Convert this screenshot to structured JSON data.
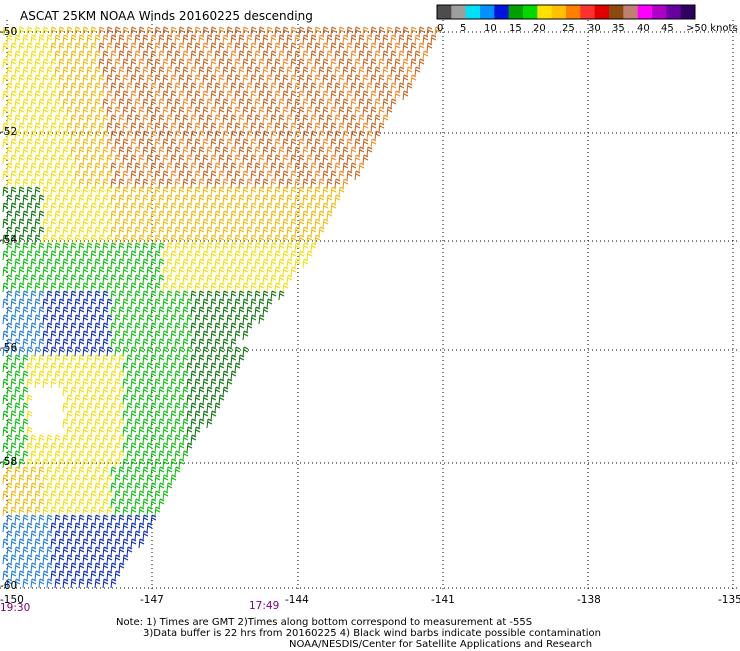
{
  "title": "ASCAT 25KM NOAA Winds 20160225 descending",
  "colorbar": {
    "colors": [
      "#4d4d4d",
      "#9e9e9e",
      "#00e0f8",
      "#0090ff",
      "#0014e0",
      "#00a000",
      "#00d800",
      "#ffe000",
      "#ffc000",
      "#ff8000",
      "#ff3030",
      "#e00000",
      "#8a4b10",
      "#c08070",
      "#ff00ff",
      "#b000c8",
      "#6a00a0",
      "#300060"
    ],
    "labels": [
      "0",
      "5",
      "10",
      "15",
      "20",
      "25",
      "30",
      "35",
      "40",
      "45",
      ">50 knots"
    ]
  },
  "axes": {
    "lat_labels": [
      "-50",
      "-52",
      "-54",
      "-56",
      "-58",
      "-60"
    ],
    "lon_labels": [
      "-150",
      "-147",
      "-144",
      "-141",
      "-138",
      "-135"
    ],
    "lat_values": [
      -50,
      -52,
      -54,
      -56,
      -58,
      -60
    ],
    "lon_values": [
      -150,
      -147,
      -144,
      -141,
      -138,
      -135
    ]
  },
  "times": [
    "19:30",
    "17:49"
  ],
  "notes": [
    "Note: 1) Times are GMT 2)Times along bottom correspond to measurement at -55S",
    "3)Data buffer is 22 hrs from 20160225 4) Black wind barbs indicate possible contamination",
    "NOAA/NESDIS/Center for Satellite Applications and Research"
  ],
  "wind_colors": {
    "brown": "#c85f16",
    "orange": "#f08a20",
    "gold": "#f0b800",
    "yellow": "#f2e000",
    "green_dark": "#007000",
    "green": "#00c000",
    "blue": "#0020d0",
    "blue_light": "#1a7ae0"
  }
}
